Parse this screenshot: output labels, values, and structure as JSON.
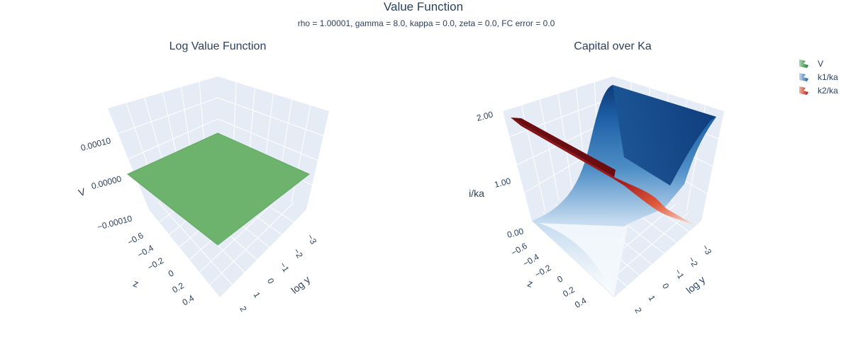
{
  "figure": {
    "title": "Value Function",
    "subtitle": "rho = 1.00001, gamma = 8.0, kappa = 0.0, zeta = 0.0, FC error = 0.0"
  },
  "legend": [
    {
      "name": "V",
      "color": "#3f9b52"
    },
    {
      "name": "k1/ka",
      "color": "#2c6fb3"
    },
    {
      "name": "k2/ka",
      "color": "#c9302c"
    }
  ],
  "chart_data": [
    {
      "type": "surface",
      "title": "Log Value Function",
      "series": [
        "V"
      ],
      "xlabel": "log y",
      "ylabel": "z",
      "zlabel": "V",
      "x_ticks": [
        "−3",
        "−2",
        "−1",
        "0",
        "1",
        "2"
      ],
      "y_ticks": [
        "−0.6",
        "−0.4",
        "−0.2",
        "0",
        "0.2",
        "0.4"
      ],
      "z_ticks": [
        "−0.00010",
        "0.00000",
        "0.00010"
      ],
      "xlim": [
        -3,
        3
      ],
      "ylim": [
        -0.7,
        0.7
      ],
      "zlim": [
        -0.00015,
        0.00015
      ],
      "values_description_value": 0.0,
      "surface_color": "#6db36d"
    },
    {
      "type": "surface",
      "title": "Capital over Ka",
      "series": [
        "k1/ka",
        "k2/ka"
      ],
      "xlabel": "log y",
      "ylabel": "z",
      "zlabel": "i/ka",
      "x_ticks": [
        "−3",
        "−2",
        "−1",
        "0",
        "1",
        "2"
      ],
      "y_ticks": [
        "−0.6",
        "−0.4",
        "−0.2",
        "0",
        "0.2",
        "0.4"
      ],
      "z_ticks": [
        "0.00",
        "1.00",
        "2.00"
      ],
      "xlim": [
        -3,
        3
      ],
      "ylim": [
        -0.7,
        0.7
      ],
      "zlim": [
        0,
        2
      ],
      "k1_range": [
        0,
        2
      ],
      "k2_range": [
        0,
        2
      ]
    }
  ]
}
